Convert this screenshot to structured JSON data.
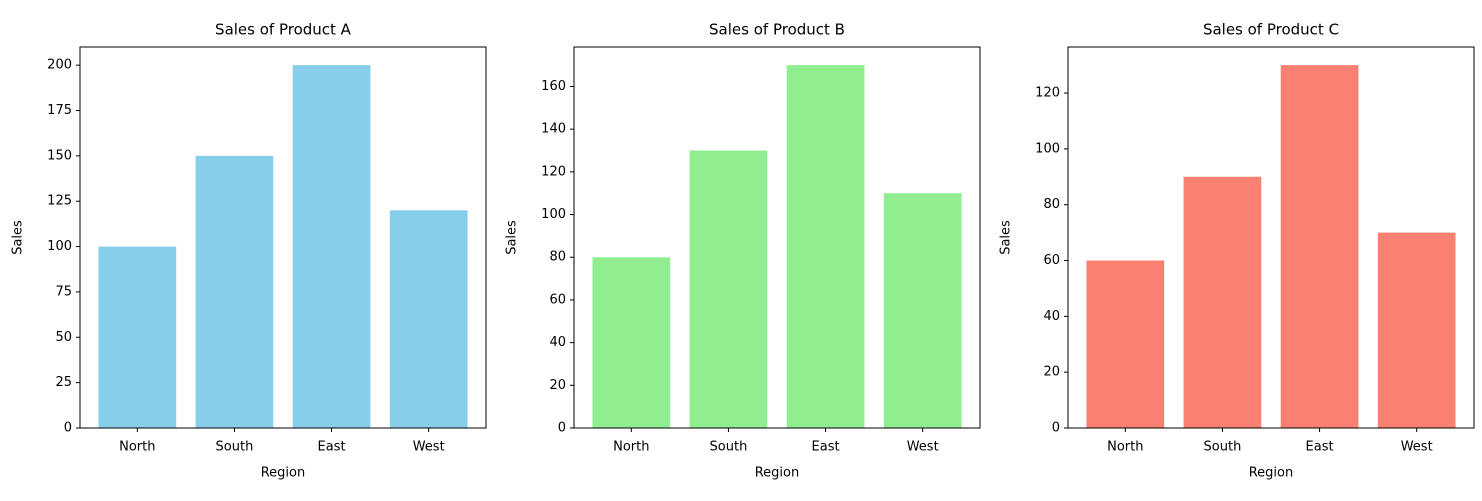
{
  "chart_data": [
    {
      "type": "bar",
      "title": "Sales of Product A",
      "xlabel": "Region",
      "ylabel": "Sales",
      "categories": [
        "North",
        "South",
        "East",
        "West"
      ],
      "values": [
        100,
        150,
        200,
        120
      ],
      "color": "#87ceeb",
      "ylim": [
        0,
        210
      ],
      "yticks": [
        0,
        25,
        50,
        75,
        100,
        125,
        150,
        175,
        200
      ]
    },
    {
      "type": "bar",
      "title": "Sales of Product B",
      "xlabel": "Region",
      "ylabel": "Sales",
      "categories": [
        "North",
        "South",
        "East",
        "West"
      ],
      "values": [
        80,
        130,
        170,
        110
      ],
      "color": "#90ee90",
      "ylim": [
        0,
        178.5
      ],
      "yticks": [
        0,
        20,
        40,
        60,
        80,
        100,
        120,
        140,
        160
      ]
    },
    {
      "type": "bar",
      "title": "Sales of Product C",
      "xlabel": "Region",
      "ylabel": "Sales",
      "categories": [
        "North",
        "South",
        "East",
        "West"
      ],
      "values": [
        60,
        90,
        130,
        70
      ],
      "color": "#fa8072",
      "ylim": [
        0,
        136.5
      ],
      "yticks": [
        0,
        20,
        40,
        60,
        80,
        100,
        120
      ]
    }
  ]
}
